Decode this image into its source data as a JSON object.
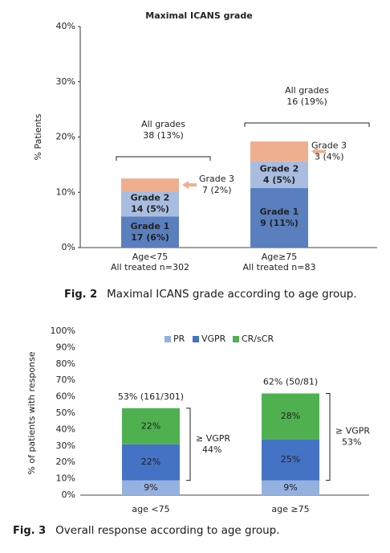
{
  "chart_data": [
    {
      "type": "stacked_bar",
      "title": "Maximal ICANS grade",
      "y_label": "% Patients",
      "categories": [
        "Age<75",
        "Age≥75"
      ],
      "category_notes": [
        "All treated n=302",
        "All treated n=83"
      ],
      "ylim": [
        0,
        40
      ],
      "yticks": [
        {
          "value": 0,
          "label": "0%"
        },
        {
          "value": 10,
          "label": "10%"
        },
        {
          "value": 20,
          "label": "20%"
        },
        {
          "value": 30,
          "label": "30%"
        },
        {
          "value": 40,
          "label": "40%"
        }
      ],
      "series": [
        {
          "name": "Grade 1",
          "color": "#5a7fbf",
          "values": [
            5.6,
            10.8
          ],
          "value_labels": [
            "17 (6%)",
            "9 (11%)"
          ]
        },
        {
          "name": "Grade 2",
          "color": "#a8bde0",
          "values": [
            4.6,
            4.8
          ],
          "value_labels": [
            "14 (5%)",
            "4 (5%)"
          ]
        },
        {
          "name": "Grade 3",
          "color": "#efae8d",
          "values": [
            2.3,
            3.6
          ],
          "value_labels": [
            "7 (2%)",
            "3 (4%)"
          ]
        }
      ],
      "total_name": "All grades",
      "total_labels": [
        "38 (13%)",
        "16 (19%)"
      ]
    },
    {
      "type": "stacked_bar",
      "y_label": "% of patients with response",
      "categories": [
        "age <75",
        "age ≥75"
      ],
      "ylim": [
        0,
        100
      ],
      "yticks": [
        {
          "value": 0,
          "label": "0%"
        },
        {
          "value": 10,
          "label": "10%"
        },
        {
          "value": 20,
          "label": "20%"
        },
        {
          "value": 30,
          "label": "30%"
        },
        {
          "value": 40,
          "label": "40%"
        },
        {
          "value": 50,
          "label": "50%"
        },
        {
          "value": 60,
          "label": "60%"
        },
        {
          "value": 70,
          "label": "70%"
        },
        {
          "value": 80,
          "label": "80%"
        },
        {
          "value": 90,
          "label": "90%"
        },
        {
          "value": 100,
          "label": "100%"
        }
      ],
      "legend": "top",
      "series": [
        {
          "name": "PR",
          "color": "#94b1e0",
          "values": [
            9,
            9
          ],
          "value_labels": [
            "9%",
            "9%"
          ]
        },
        {
          "name": "VGPR",
          "color": "#4472c4",
          "values": [
            22,
            25
          ],
          "value_labels": [
            "22%",
            "25%"
          ]
        },
        {
          "name": "CR/sCR",
          "color": "#4fb04f",
          "values": [
            22,
            28
          ],
          "value_labels": [
            "22%",
            "28%"
          ]
        }
      ],
      "total_labels": [
        "53% (161/301)",
        "62% (50/81)"
      ],
      "bracket_name": "≥ VGPR",
      "bracket_labels": [
        "44%",
        "53%"
      ]
    }
  ],
  "captions": [
    {
      "label": "Fig. 2",
      "text": "Maximal ICANS grade according to age group."
    },
    {
      "label": "Fig. 3",
      "text": "Overall response according to age group."
    }
  ]
}
